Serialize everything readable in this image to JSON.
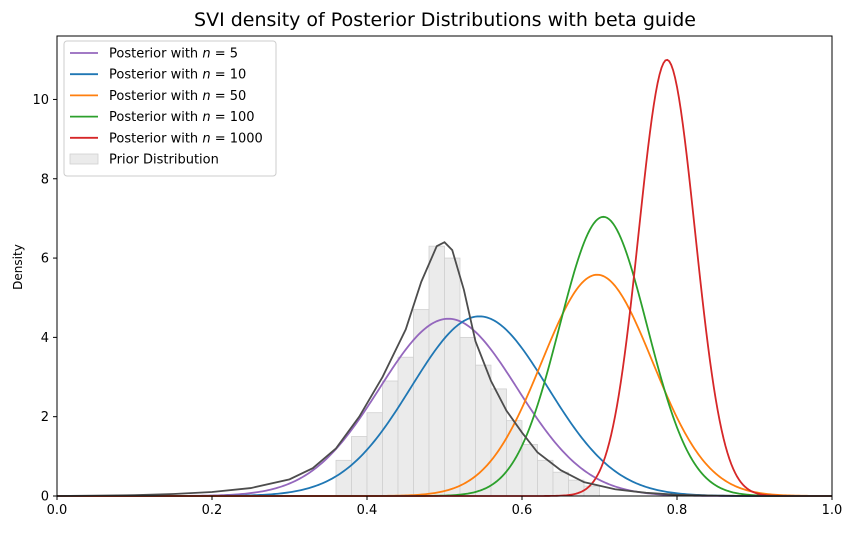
{
  "chart_data": {
    "type": "line",
    "title": "SVI density of Posterior Distributions with beta guide",
    "xlabel": "",
    "ylabel": "Density",
    "xlim": [
      0.0,
      1.0
    ],
    "ylim": [
      0,
      11.6
    ],
    "x_ticks": [
      "0.0",
      "0.2",
      "0.4",
      "0.6",
      "0.8",
      "1.0"
    ],
    "y_ticks": [
      "0",
      "2",
      "4",
      "6",
      "8",
      "10"
    ],
    "grid": false,
    "legend_position": "top-left",
    "series": [
      {
        "name": "Posterior with n = 5",
        "legend_prefix": "Posterior with ",
        "legend_math": "n = 5",
        "color": "#9467bd",
        "peak_x": 0.505,
        "peak_y": 4.47,
        "sd": 0.089
      },
      {
        "name": "Posterior with n = 10",
        "legend_prefix": "Posterior with ",
        "legend_math": "n = 10",
        "color": "#1f77b4",
        "peak_x": 0.545,
        "peak_y": 4.53,
        "sd": 0.088
      },
      {
        "name": "Posterior with n = 50",
        "legend_prefix": "Posterior with ",
        "legend_math": "n = 50",
        "color": "#ff7f0e",
        "peak_x": 0.697,
        "peak_y": 5.58,
        "sd": 0.0715
      },
      {
        "name": "Posterior with n = 100",
        "legend_prefix": "Posterior with ",
        "legend_math": "n = 100",
        "color": "#2ca02c",
        "peak_x": 0.705,
        "peak_y": 7.04,
        "sd": 0.0567
      },
      {
        "name": "Posterior with n = 1000",
        "legend_prefix": "Posterior with ",
        "legend_math": "n = 1000",
        "color": "#d62728",
        "peak_x": 0.787,
        "peak_y": 11.0,
        "sd": 0.0363
      }
    ],
    "prior": {
      "name": "Prior Distribution",
      "color": "#d9d9d9",
      "hist_bins": [
        {
          "x0": 0.36,
          "x1": 0.38,
          "height": 0.9
        },
        {
          "x0": 0.38,
          "x1": 0.4,
          "height": 1.5
        },
        {
          "x0": 0.4,
          "x1": 0.42,
          "height": 2.1
        },
        {
          "x0": 0.42,
          "x1": 0.44,
          "height": 2.9
        },
        {
          "x0": 0.44,
          "x1": 0.46,
          "height": 3.5
        },
        {
          "x0": 0.46,
          "x1": 0.48,
          "height": 4.7
        },
        {
          "x0": 0.48,
          "x1": 0.5,
          "height": 6.3
        },
        {
          "x0": 0.5,
          "x1": 0.52,
          "height": 6.0
        },
        {
          "x0": 0.52,
          "x1": 0.54,
          "height": 4.0
        },
        {
          "x0": 0.54,
          "x1": 0.56,
          "height": 3.3
        },
        {
          "x0": 0.56,
          "x1": 0.58,
          "height": 2.7
        },
        {
          "x0": 0.58,
          "x1": 0.6,
          "height": 1.9
        },
        {
          "x0": 0.6,
          "x1": 0.62,
          "height": 1.3
        },
        {
          "x0": 0.62,
          "x1": 0.64,
          "height": 0.9
        },
        {
          "x0": 0.64,
          "x1": 0.66,
          "height": 0.6
        },
        {
          "x0": 0.66,
          "x1": 0.68,
          "height": 0.4
        },
        {
          "x0": 0.68,
          "x1": 0.7,
          "height": 0.25
        }
      ],
      "kde_color": "#4d4d4d",
      "kde_points": [
        [
          0.0,
          0.0
        ],
        [
          0.05,
          0.01
        ],
        [
          0.1,
          0.02
        ],
        [
          0.15,
          0.05
        ],
        [
          0.2,
          0.1
        ],
        [
          0.25,
          0.2
        ],
        [
          0.3,
          0.42
        ],
        [
          0.33,
          0.7
        ],
        [
          0.36,
          1.2
        ],
        [
          0.39,
          2.0
        ],
        [
          0.42,
          3.0
        ],
        [
          0.45,
          4.2
        ],
        [
          0.47,
          5.4
        ],
        [
          0.49,
          6.3
        ],
        [
          0.5,
          6.4
        ],
        [
          0.51,
          6.2
        ],
        [
          0.525,
          5.2
        ],
        [
          0.54,
          3.9
        ],
        [
          0.56,
          2.9
        ],
        [
          0.58,
          2.15
        ],
        [
          0.6,
          1.6
        ],
        [
          0.62,
          1.1
        ],
        [
          0.65,
          0.65
        ],
        [
          0.68,
          0.35
        ],
        [
          0.72,
          0.17
        ],
        [
          0.76,
          0.08
        ],
        [
          0.8,
          0.03
        ],
        [
          0.85,
          0.01
        ],
        [
          0.9,
          0.0
        ],
        [
          1.0,
          0.0
        ]
      ]
    }
  }
}
